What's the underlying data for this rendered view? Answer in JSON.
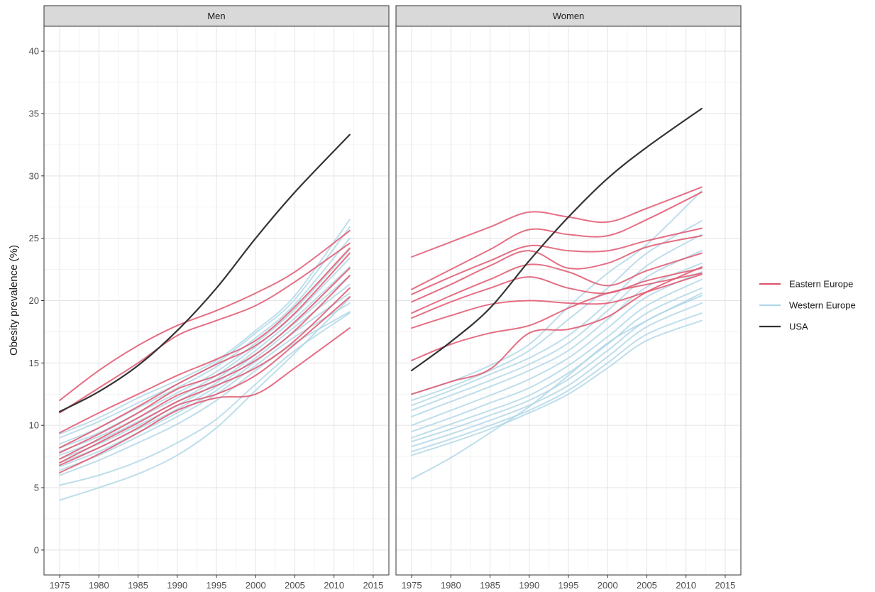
{
  "chart_data": {
    "type": "line",
    "ylabel": "Obesity prevalence (%)",
    "xlim": [
      1973,
      2017
    ],
    "ylim": [
      -2,
      42
    ],
    "x_ticks": [
      1975,
      1980,
      1985,
      1990,
      1995,
      2000,
      2005,
      2010,
      2015
    ],
    "y_ticks": [
      0,
      5,
      10,
      15,
      20,
      25,
      30,
      35,
      40
    ],
    "x_tick_labels": [
      "1975",
      "1980",
      "1985",
      "1990",
      "1995",
      "2000",
      "2005",
      "2010",
      "2015"
    ],
    "y_tick_labels": [
      "0",
      "5",
      "10",
      "15",
      "20",
      "25",
      "30",
      "35",
      "40"
    ],
    "grid": true,
    "legend_position": "right",
    "x": [
      1975,
      1980,
      1985,
      1990,
      1995,
      2000,
      2005,
      2012
    ],
    "groups": [
      {
        "label": "Eastern Europe",
        "color": "#e0566e"
      },
      {
        "label": "Western Europe",
        "color": "#aed6e6"
      },
      {
        "label": "USA",
        "color": "#333333"
      }
    ],
    "panels": [
      {
        "label": "Men",
        "series": [
          {
            "group": "USA",
            "values": [
              11.1,
              12.7,
              14.8,
              17.6,
              21.0,
              25.0,
              28.7,
              33.3
            ]
          },
          {
            "group": "Western Europe",
            "values": [
              9.3,
              10.6,
              12.2,
              13.6,
              15.2,
              17.6,
              20.4,
              26.5
            ]
          },
          {
            "group": "Western Europe",
            "values": [
              9.0,
              10.3,
              11.8,
              13.3,
              15.0,
              17.4,
              20.1,
              25.9
            ]
          },
          {
            "group": "Western Europe",
            "values": [
              8.5,
              9.8,
              11.4,
              13.0,
              14.7,
              17.0,
              19.7,
              25.0
            ]
          },
          {
            "group": "Western Europe",
            "values": [
              8.2,
              9.4,
              11.0,
              12.6,
              14.3,
              16.6,
              19.3,
              24.1
            ]
          },
          {
            "group": "Western Europe",
            "values": [
              7.9,
              9.1,
              10.6,
              12.2,
              14.0,
              16.3,
              18.9,
              23.4
            ]
          },
          {
            "group": "Western Europe",
            "values": [
              7.6,
              8.8,
              10.3,
              11.9,
              13.7,
              16.0,
              18.6,
              22.7
            ]
          },
          {
            "group": "Western Europe",
            "values": [
              7.3,
              8.5,
              10.0,
              11.6,
              13.4,
              15.7,
              18.2,
              22.0
            ]
          },
          {
            "group": "Western Europe",
            "values": [
              7.0,
              8.2,
              9.7,
              11.3,
              13.1,
              15.4,
              17.9,
              21.3
            ]
          },
          {
            "group": "Western Europe",
            "values": [
              6.7,
              7.9,
              9.4,
              11.0,
              12.8,
              15.1,
              17.5,
              20.6
            ]
          },
          {
            "group": "Western Europe",
            "values": [
              6.4,
              7.6,
              9.1,
              10.7,
              12.5,
              14.8,
              17.1,
              19.8
            ]
          },
          {
            "group": "Western Europe",
            "values": [
              6.0,
              7.2,
              8.6,
              10.1,
              12.0,
              14.4,
              16.6,
              19.1
            ]
          },
          {
            "group": "Western Europe",
            "values": [
              5.2,
              6.0,
              7.1,
              8.6,
              10.5,
              13.3,
              16.0,
              19.0
            ]
          },
          {
            "group": "Western Europe",
            "values": [
              4.0,
              5.0,
              6.1,
              7.6,
              9.8,
              12.8,
              15.8,
              20.2
            ]
          },
          {
            "group": "Eastern Europe",
            "values": [
              12.0,
              14.4,
              16.4,
              18.0,
              19.2,
              20.6,
              22.3,
              25.6
            ]
          },
          {
            "group": "Eastern Europe",
            "values": [
              11.0,
              13.0,
              15.0,
              17.2,
              18.4,
              19.6,
              21.5,
              24.6
            ]
          },
          {
            "group": "Eastern Europe",
            "values": [
              9.4,
              11.0,
              12.5,
              14.0,
              15.3,
              16.8,
              19.5,
              24.2
            ]
          },
          {
            "group": "Eastern Europe",
            "values": [
              8.2,
              9.8,
              11.5,
              13.3,
              14.9,
              16.4,
              19.0,
              23.8
            ]
          },
          {
            "group": "Eastern Europe",
            "values": [
              7.8,
              9.3,
              11.0,
              12.9,
              14.0,
              15.7,
              18.3,
              22.6
            ]
          },
          {
            "group": "Eastern Europe",
            "values": [
              7.3,
              8.9,
              10.6,
              12.4,
              13.6,
              15.2,
              17.6,
              22.0
            ]
          },
          {
            "group": "Eastern Europe",
            "values": [
              7.0,
              8.6,
              10.2,
              11.9,
              13.2,
              14.6,
              16.8,
              21.0
            ]
          },
          {
            "group": "Eastern Europe",
            "values": [
              6.8,
              8.2,
              9.8,
              11.6,
              12.5,
              14.0,
              16.5,
              20.3
            ]
          },
          {
            "group": "Eastern Europe",
            "values": [
              6.2,
              7.7,
              9.4,
              11.2,
              12.2,
              12.5,
              14.6,
              17.8
            ]
          }
        ]
      },
      {
        "label": "Women",
        "series": [
          {
            "group": "USA",
            "values": [
              14.4,
              16.7,
              19.4,
              23.2,
              26.7,
              29.8,
              32.3,
              35.4
            ]
          },
          {
            "group": "Western Europe",
            "values": [
              12.5,
              13.5,
              14.8,
              16.5,
              19.5,
              22.2,
              24.5,
              28.8
            ]
          },
          {
            "group": "Western Europe",
            "values": [
              12.0,
              13.1,
              14.4,
              16.0,
              18.5,
              21.0,
              23.8,
              26.4
            ]
          },
          {
            "group": "Western Europe",
            "values": [
              11.6,
              12.8,
              14.1,
              15.4,
              17.2,
              19.8,
              22.8,
              25.3
            ]
          },
          {
            "group": "Western Europe",
            "values": [
              11.2,
              12.4,
              13.6,
              14.9,
              16.6,
              19.2,
              21.9,
              24.0
            ]
          },
          {
            "group": "Western Europe",
            "values": [
              10.7,
              11.9,
              13.1,
              14.4,
              16.0,
              18.5,
              21.1,
              23.0
            ]
          },
          {
            "group": "Western Europe",
            "values": [
              10.0,
              11.2,
              12.4,
              13.7,
              15.4,
              17.8,
              20.3,
              22.3
            ]
          },
          {
            "group": "Western Europe",
            "values": [
              9.5,
              10.6,
              11.8,
              13.0,
              14.8,
              17.1,
              19.6,
              21.7
            ]
          },
          {
            "group": "Western Europe",
            "values": [
              9.0,
              10.1,
              11.2,
              12.4,
              14.2,
              16.5,
              19.0,
              21.0
            ]
          },
          {
            "group": "Western Europe",
            "values": [
              8.7,
              9.7,
              10.8,
              12.0,
              13.7,
              16.0,
              18.4,
              20.4
            ]
          },
          {
            "group": "Western Europe",
            "values": [
              8.3,
              9.3,
              10.4,
              11.6,
              13.2,
              15.5,
              17.9,
              19.8
            ]
          },
          {
            "group": "Western Europe",
            "values": [
              7.9,
              8.9,
              10.0,
              11.2,
              12.8,
              15.0,
              17.3,
              19.0
            ]
          },
          {
            "group": "Western Europe",
            "values": [
              7.6,
              8.6,
              9.7,
              11.0,
              12.5,
              14.6,
              16.8,
              18.4
            ]
          },
          {
            "group": "Western Europe",
            "values": [
              5.7,
              7.4,
              9.4,
              11.5,
              14.0,
              16.6,
              18.4,
              20.6
            ]
          },
          {
            "group": "Eastern Europe",
            "values": [
              23.5,
              24.7,
              25.9,
              27.1,
              26.7,
              26.3,
              27.4,
              29.1
            ]
          },
          {
            "group": "Eastern Europe",
            "values": [
              20.9,
              22.5,
              24.1,
              25.7,
              25.3,
              25.2,
              26.5,
              28.7
            ]
          },
          {
            "group": "Eastern Europe",
            "values": [
              20.5,
              21.9,
              23.2,
              24.4,
              24.0,
              24.0,
              24.8,
              25.8
            ]
          },
          {
            "group": "Eastern Europe",
            "values": [
              19.9,
              21.3,
              22.8,
              24.0,
              22.6,
              23.0,
              24.3,
              25.2
            ]
          },
          {
            "group": "Eastern Europe",
            "values": [
              19.0,
              20.4,
              21.7,
              22.9,
              22.3,
              21.2,
              22.4,
              23.8
            ]
          },
          {
            "group": "Eastern Europe",
            "values": [
              18.6,
              19.9,
              21.0,
              21.9,
              21.0,
              20.6,
              21.6,
              22.6
            ]
          },
          {
            "group": "Eastern Europe",
            "values": [
              17.8,
              18.8,
              19.7,
              20.0,
              19.8,
              19.8,
              20.7,
              22.1
            ]
          },
          {
            "group": "Eastern Europe",
            "values": [
              15.2,
              16.5,
              17.4,
              18.0,
              19.4,
              20.6,
              21.3,
              22.2
            ]
          },
          {
            "group": "Eastern Europe",
            "values": [
              12.5,
              13.5,
              14.5,
              17.4,
              17.7,
              18.7,
              20.7,
              22.7
            ]
          }
        ]
      }
    ]
  }
}
